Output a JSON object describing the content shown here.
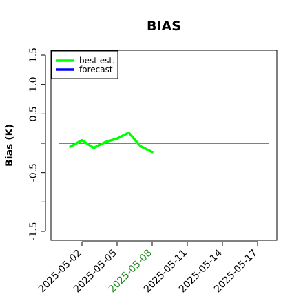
{
  "chart_data": {
    "type": "line",
    "title": "BIAS",
    "xlabel": "",
    "ylabel": "Bias (K)",
    "ylim": [
      -1.6,
      1.6
    ],
    "yticks": [
      {
        "value": -1.5,
        "label": "-1.5"
      },
      {
        "value": -1.0,
        "label": ""
      },
      {
        "value": -0.5,
        "label": "-0.5"
      },
      {
        "value": 0.0,
        "label": ""
      },
      {
        "value": 0.5,
        "label": "0.5"
      },
      {
        "value": 1.0,
        "label": "1.0"
      },
      {
        "value": 1.5,
        "label": "1.5"
      }
    ],
    "xlim": [
      "2025-04-29",
      "2025-05-18"
    ],
    "xticks": [
      {
        "value": "2025-05-02",
        "label": "2025-05-02",
        "color": "#000000"
      },
      {
        "value": "2025-05-05",
        "label": "2025-05-05",
        "color": "#000000"
      },
      {
        "value": "2025-05-08",
        "label": "2025-05-08",
        "color": "#228b22"
      },
      {
        "value": "2025-05-11",
        "label": "2025-05-11",
        "color": "#000000"
      },
      {
        "value": "2025-05-14",
        "label": "2025-05-14",
        "color": "#000000"
      },
      {
        "value": "2025-05-17",
        "label": "2025-05-17",
        "color": "#000000"
      }
    ],
    "reference_line": {
      "y": 0,
      "color": "#000000"
    },
    "grid": false,
    "legend": {
      "position": "top-left"
    },
    "series": [
      {
        "name": "best est.",
        "color": "#00ff00",
        "x": [
          "2025-05-01",
          "2025-05-02",
          "2025-05-03",
          "2025-05-04",
          "2025-05-05",
          "2025-05-06",
          "2025-05-07",
          "2025-05-08"
        ],
        "y": [
          -0.06,
          0.05,
          -0.08,
          0.02,
          0.08,
          0.18,
          -0.05,
          -0.15
        ]
      },
      {
        "name": "forecast",
        "color": "#0000ff",
        "x": [],
        "y": []
      }
    ]
  }
}
